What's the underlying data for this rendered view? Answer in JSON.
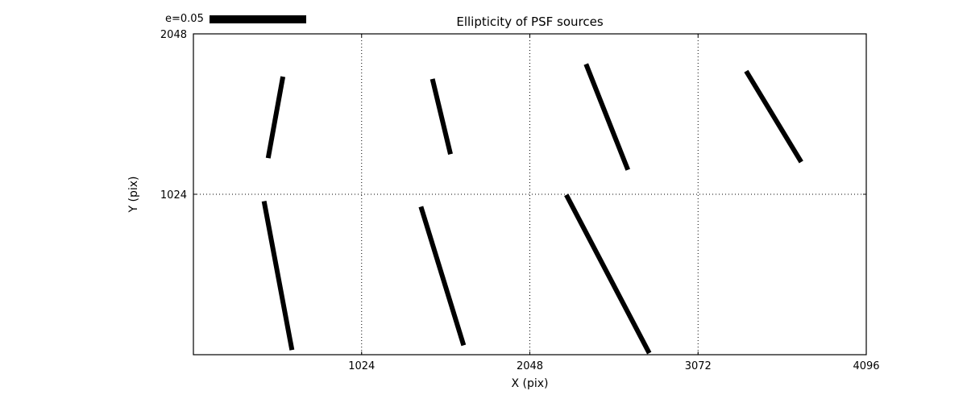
{
  "colors": {
    "foreground": "#000000",
    "background": "#ffffff"
  },
  "chart_data": {
    "type": "scatter",
    "subtype": "whisker-quiver",
    "title": "Ellipticity of PSF sources",
    "xlabel": "X (pix)",
    "ylabel": "Y (pix)",
    "xlim": [
      0,
      4096
    ],
    "ylim": [
      0,
      2048
    ],
    "xticks": [
      1024,
      2048,
      3072,
      4096
    ],
    "yticks": [
      1024,
      2048
    ],
    "grid": {
      "x": [
        1024,
        2048,
        3072
      ],
      "y": [
        1024
      ],
      "style": "dotted"
    },
    "legend": {
      "label": "e=0.05",
      "position": "upper-left-outside"
    },
    "segments": [
      {
        "x1": 545,
        "y1": 1775,
        "x2": 455,
        "y2": 1255
      },
      {
        "x1": 1455,
        "y1": 1760,
        "x2": 1565,
        "y2": 1280
      },
      {
        "x1": 2390,
        "y1": 1855,
        "x2": 2645,
        "y2": 1180
      },
      {
        "x1": 3365,
        "y1": 1810,
        "x2": 3700,
        "y2": 1230
      },
      {
        "x1": 430,
        "y1": 980,
        "x2": 600,
        "y2": 30
      },
      {
        "x1": 1385,
        "y1": 945,
        "x2": 1645,
        "y2": 60
      },
      {
        "x1": 2270,
        "y1": 1020,
        "x2": 2775,
        "y2": 10
      }
    ]
  }
}
